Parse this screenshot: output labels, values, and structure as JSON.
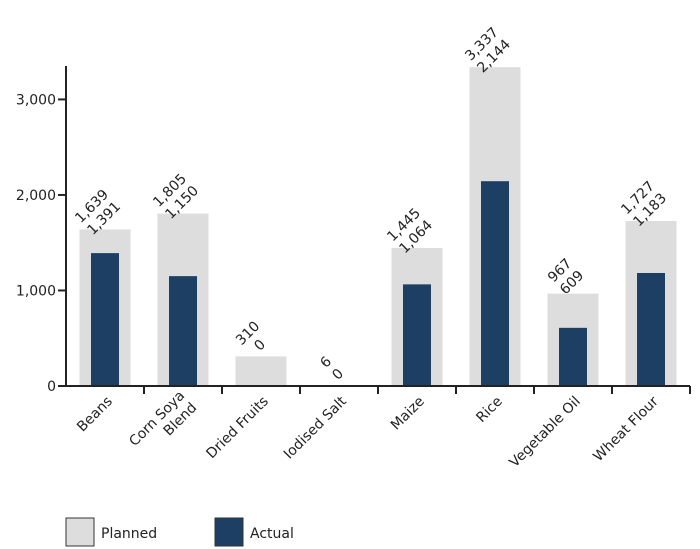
{
  "chart_data": {
    "type": "bar",
    "categories": [
      "Beans",
      "Corn Soya Blend",
      "Dried Fruits",
      "Iodised Salt",
      "Maize",
      "Rice",
      "Vegetable Oil",
      "Wheat Flour"
    ],
    "category_lines": [
      [
        "Beans"
      ],
      [
        "Corn Soya",
        "Blend"
      ],
      [
        "Dried Fruits"
      ],
      [
        "Iodised Salt"
      ],
      [
        "Maize"
      ],
      [
        "Rice"
      ],
      [
        "Vegetable Oil"
      ],
      [
        "Wheat Flour"
      ]
    ],
    "series": [
      {
        "name": "Planned",
        "values": [
          1639,
          1805,
          310,
          6,
          1445,
          3337,
          967,
          1727
        ],
        "labels": [
          "1,639",
          "1,805",
          "310",
          "6",
          "1,445",
          "3,337",
          "967",
          "1,727"
        ],
        "color": "#dddddd"
      },
      {
        "name": "Actual",
        "values": [
          1391,
          1150,
          0,
          0,
          1064,
          2144,
          609,
          1183
        ],
        "labels": [
          "1,391",
          "1,150",
          "0",
          "0",
          "1,064",
          "2,144",
          "609",
          "1,183"
        ],
        "color": "#1c3f63"
      }
    ],
    "y_ticks": [
      0,
      1000,
      2000,
      3000
    ],
    "y_tick_labels": [
      "0",
      "1,000",
      "2,000",
      "3,000"
    ],
    "ylim": [
      0,
      3350
    ],
    "title": "",
    "xlabel": "",
    "ylabel": "",
    "grid": false,
    "legend_position": "bottom-left"
  }
}
